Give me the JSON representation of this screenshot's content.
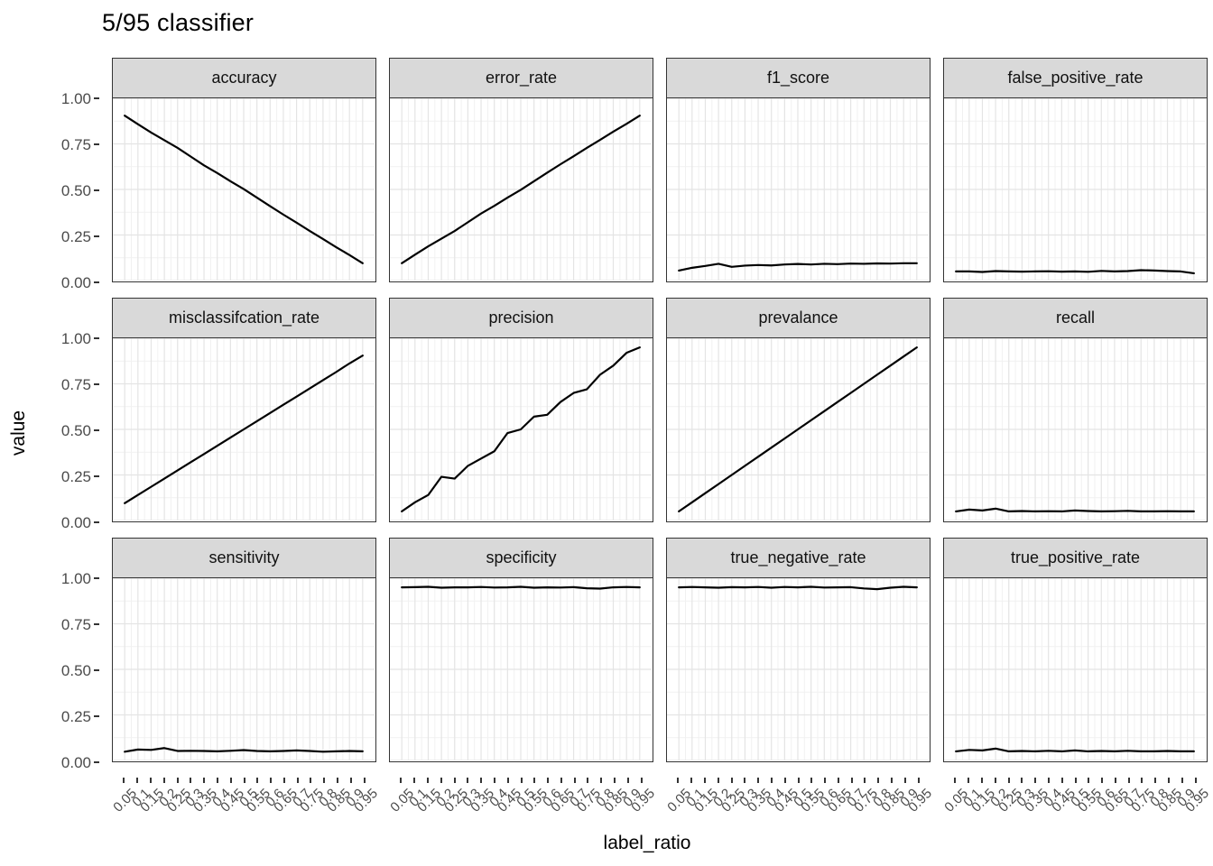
{
  "title": "5/95 classifier",
  "axes": {
    "x_label": "label_ratio",
    "y_label": "value",
    "y_tick_labels": [
      "1.00",
      "0.75",
      "0.50",
      "0.25",
      "0.00"
    ],
    "x_tick_labels": [
      "0.05",
      "0.1",
      "0.15",
      "0.2",
      "0.25",
      "0.3",
      "0.35",
      "0.4",
      "0.45",
      "0.5",
      "0.55",
      "0.6",
      "0.65",
      "0.7",
      "0.75",
      "0.8",
      "0.85",
      "0.9",
      "0.95"
    ]
  },
  "colors": {
    "line": "#000000",
    "strip_fill": "#d9d9d9",
    "panel_border": "#343434",
    "grid_major": "#e4e4e4",
    "grid_minor": "#f1f1f1",
    "axis_text": "#4b4b4b"
  },
  "chart_data": {
    "type": "line",
    "title": "5/95 classifier",
    "xlabel": "label_ratio",
    "ylabel": "value",
    "xlim": [
      0.05,
      0.95
    ],
    "ylim": [
      0.0,
      1.0
    ],
    "grid": true,
    "legend_position": "none",
    "facet_layout": "4 columns x 3 rows",
    "x": [
      0.05,
      0.1,
      0.15,
      0.2,
      0.25,
      0.3,
      0.35,
      0.4,
      0.45,
      0.5,
      0.55,
      0.6,
      0.65,
      0.7,
      0.75,
      0.8,
      0.85,
      0.9,
      0.95
    ],
    "series": [
      {
        "name": "accuracy",
        "values": [
          0.905,
          0.858,
          0.812,
          0.77,
          0.728,
          0.68,
          0.632,
          0.59,
          0.545,
          0.502,
          0.455,
          0.408,
          0.362,
          0.318,
          0.272,
          0.228,
          0.183,
          0.14,
          0.095
        ]
      },
      {
        "name": "error_rate",
        "values": [
          0.095,
          0.142,
          0.188,
          0.23,
          0.272,
          0.32,
          0.368,
          0.41,
          0.455,
          0.498,
          0.545,
          0.592,
          0.638,
          0.682,
          0.728,
          0.772,
          0.817,
          0.86,
          0.905
        ]
      },
      {
        "name": "f1_score",
        "values": [
          0.055,
          0.07,
          0.08,
          0.092,
          0.075,
          0.082,
          0.085,
          0.083,
          0.088,
          0.091,
          0.088,
          0.092,
          0.09,
          0.093,
          0.092,
          0.094,
          0.093,
          0.095,
          0.095
        ]
      },
      {
        "name": "false_positive_rate",
        "values": [
          0.05,
          0.05,
          0.047,
          0.052,
          0.05,
          0.049,
          0.05,
          0.051,
          0.049,
          0.05,
          0.048,
          0.053,
          0.05,
          0.052,
          0.057,
          0.055,
          0.052,
          0.05,
          0.04
        ]
      },
      {
        "name": "misclassifcation_rate",
        "values": [
          0.095,
          0.14,
          0.185,
          0.23,
          0.275,
          0.32,
          0.365,
          0.41,
          0.455,
          0.5,
          0.545,
          0.59,
          0.635,
          0.68,
          0.725,
          0.77,
          0.815,
          0.862,
          0.905
        ]
      },
      {
        "name": "precision",
        "values": [
          0.05,
          0.1,
          0.14,
          0.24,
          0.23,
          0.3,
          0.34,
          0.38,
          0.48,
          0.5,
          0.57,
          0.58,
          0.65,
          0.7,
          0.72,
          0.8,
          0.85,
          0.92,
          0.95
        ]
      },
      {
        "name": "prevalance",
        "values": [
          0.05,
          0.1,
          0.15,
          0.2,
          0.25,
          0.3,
          0.35,
          0.4,
          0.45,
          0.5,
          0.55,
          0.6,
          0.65,
          0.7,
          0.75,
          0.8,
          0.85,
          0.9,
          0.95
        ]
      },
      {
        "name": "recall",
        "values": [
          0.05,
          0.06,
          0.055,
          0.065,
          0.05,
          0.052,
          0.05,
          0.051,
          0.05,
          0.055,
          0.052,
          0.05,
          0.051,
          0.053,
          0.05,
          0.05,
          0.051,
          0.05,
          0.05
        ]
      },
      {
        "name": "sensitivity",
        "values": [
          0.048,
          0.06,
          0.058,
          0.068,
          0.052,
          0.053,
          0.052,
          0.05,
          0.053,
          0.057,
          0.052,
          0.05,
          0.052,
          0.055,
          0.052,
          0.048,
          0.05,
          0.052,
          0.05
        ]
      },
      {
        "name": "specificity",
        "values": [
          0.95,
          0.951,
          0.953,
          0.948,
          0.95,
          0.95,
          0.952,
          0.949,
          0.95,
          0.953,
          0.948,
          0.95,
          0.949,
          0.951,
          0.945,
          0.943,
          0.95,
          0.952,
          0.95
        ]
      },
      {
        "name": "true_negative_rate",
        "values": [
          0.95,
          0.952,
          0.95,
          0.948,
          0.951,
          0.95,
          0.952,
          0.948,
          0.952,
          0.95,
          0.953,
          0.949,
          0.95,
          0.951,
          0.944,
          0.94,
          0.948,
          0.953,
          0.95
        ]
      },
      {
        "name": "true_positive_rate",
        "values": [
          0.05,
          0.058,
          0.055,
          0.065,
          0.05,
          0.052,
          0.05,
          0.053,
          0.05,
          0.055,
          0.05,
          0.052,
          0.05,
          0.053,
          0.05,
          0.05,
          0.052,
          0.05,
          0.05
        ]
      }
    ]
  }
}
